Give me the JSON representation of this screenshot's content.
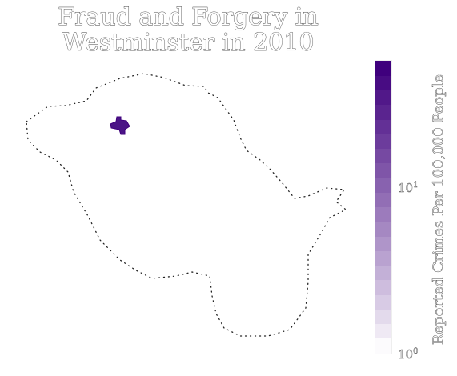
{
  "title": {
    "line1": "Fraud and Forgery in",
    "line2": "Westminster in 2010"
  },
  "colorbar": {
    "label": "Reported Crimes Per 100,000 People",
    "scale": "log",
    "ticks": [
      {
        "base": "10",
        "exp": "0"
      },
      {
        "base": "10",
        "exp": "1"
      }
    ],
    "color_low": "#fcfbfd",
    "color_high": "#3f007d"
  },
  "map": {
    "area_name": "",
    "boundary_style": "dotted",
    "highlight_color": "#4a1486"
  }
}
